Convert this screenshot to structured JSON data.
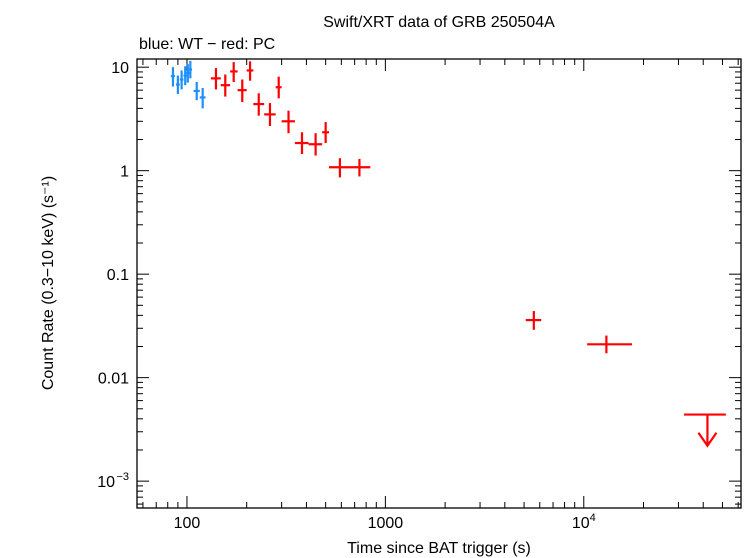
{
  "chart_data": {
    "type": "scatter",
    "title": "Swift/XRT data of GRB 250504A",
    "subtitle": "blue: WT − red: PC",
    "xlabel": "Time since BAT trigger (s)",
    "ylabel": "Count Rate (0.3−10 keV) (s⁻¹)",
    "x_scale": "log",
    "y_scale": "log",
    "xlim": [
      56,
      62000
    ],
    "ylim": [
      0.00055,
      12
    ],
    "x_ticks": [
      {
        "value": 100,
        "label": "100",
        "sup": ""
      },
      {
        "value": 1000,
        "label": "1000",
        "sup": ""
      },
      {
        "value": 10000,
        "label": "10",
        "sup": "4"
      }
    ],
    "y_ticks": [
      {
        "value": 10,
        "label": "10",
        "sup": ""
      },
      {
        "value": 1,
        "label": "1",
        "sup": ""
      },
      {
        "value": 0.1,
        "label": "0.1",
        "sup": ""
      },
      {
        "value": 0.01,
        "label": "0.01",
        "sup": ""
      },
      {
        "value": 0.001,
        "label": "10",
        "sup": "−3"
      }
    ],
    "series": [
      {
        "name": "WT",
        "color": "#1e8fff",
        "points": [
          {
            "x": 85,
            "xlo": 83,
            "xhi": 87,
            "y": 8.2,
            "ylo": 6.5,
            "yhi": 10.0
          },
          {
            "x": 90,
            "xlo": 88,
            "xhi": 92,
            "y": 6.8,
            "ylo": 5.5,
            "yhi": 8.3
          },
          {
            "x": 94,
            "xlo": 92,
            "xhi": 96,
            "y": 7.6,
            "ylo": 6.1,
            "yhi": 9.3
          },
          {
            "x": 98,
            "xlo": 96,
            "xhi": 100,
            "y": 8.3,
            "ylo": 6.7,
            "yhi": 10.2
          },
          {
            "x": 101,
            "xlo": 99,
            "xhi": 103,
            "y": 8.8,
            "ylo": 7.1,
            "yhi": 10.7
          },
          {
            "x": 104,
            "xlo": 102,
            "xhi": 106,
            "y": 9.5,
            "ylo": 7.8,
            "yhi": 11.5
          },
          {
            "x": 112,
            "xlo": 108,
            "xhi": 116,
            "y": 5.9,
            "ylo": 4.8,
            "yhi": 7.2
          },
          {
            "x": 120,
            "xlo": 116,
            "xhi": 124,
            "y": 5.1,
            "ylo": 4.0,
            "yhi": 6.3
          }
        ]
      },
      {
        "name": "PC",
        "color": "#ff0000",
        "points": [
          {
            "x": 140,
            "xlo": 132,
            "xhi": 148,
            "y": 7.8,
            "ylo": 6.1,
            "yhi": 9.8
          },
          {
            "x": 156,
            "xlo": 148,
            "xhi": 165,
            "y": 6.7,
            "ylo": 5.2,
            "yhi": 8.5
          },
          {
            "x": 172,
            "xlo": 165,
            "xhi": 180,
            "y": 9.1,
            "ylo": 7.2,
            "yhi": 11.2
          },
          {
            "x": 190,
            "xlo": 180,
            "xhi": 200,
            "y": 6.0,
            "ylo": 4.6,
            "yhi": 7.6
          },
          {
            "x": 208,
            "xlo": 200,
            "xhi": 216,
            "y": 9.3,
            "ylo": 7.4,
            "yhi": 11.4
          },
          {
            "x": 230,
            "xlo": 216,
            "xhi": 245,
            "y": 4.4,
            "ylo": 3.4,
            "yhi": 5.6
          },
          {
            "x": 262,
            "xlo": 245,
            "xhi": 280,
            "y": 3.5,
            "ylo": 2.7,
            "yhi": 4.5
          },
          {
            "x": 290,
            "xlo": 280,
            "xhi": 300,
            "y": 6.4,
            "ylo": 5.0,
            "yhi": 8.1
          },
          {
            "x": 325,
            "xlo": 300,
            "xhi": 350,
            "y": 3.0,
            "ylo": 2.3,
            "yhi": 3.8
          },
          {
            "x": 380,
            "xlo": 350,
            "xhi": 410,
            "y": 1.85,
            "ylo": 1.45,
            "yhi": 2.35
          },
          {
            "x": 445,
            "xlo": 410,
            "xhi": 480,
            "y": 1.8,
            "ylo": 1.4,
            "yhi": 2.3
          },
          {
            "x": 500,
            "xlo": 480,
            "xhi": 520,
            "y": 2.35,
            "ylo": 1.85,
            "yhi": 2.95
          },
          {
            "x": 590,
            "xlo": 520,
            "xhi": 660,
            "y": 1.08,
            "ylo": 0.86,
            "yhi": 1.32
          },
          {
            "x": 740,
            "xlo": 660,
            "xhi": 840,
            "y": 1.08,
            "ylo": 0.88,
            "yhi": 1.3
          },
          {
            "x": 5600,
            "xlo": 5100,
            "xhi": 6100,
            "y": 0.036,
            "ylo": 0.029,
            "yhi": 0.044
          },
          {
            "x": 13000,
            "xlo": 10400,
            "xhi": 17500,
            "y": 0.021,
            "ylo": 0.0172,
            "yhi": 0.0255
          }
        ]
      }
    ],
    "upper_limits": [
      {
        "series": "PC",
        "x": 42000,
        "xlo": 32000,
        "xhi": 52000,
        "y": 0.0044,
        "arrow_to": 0.0022
      }
    ]
  }
}
